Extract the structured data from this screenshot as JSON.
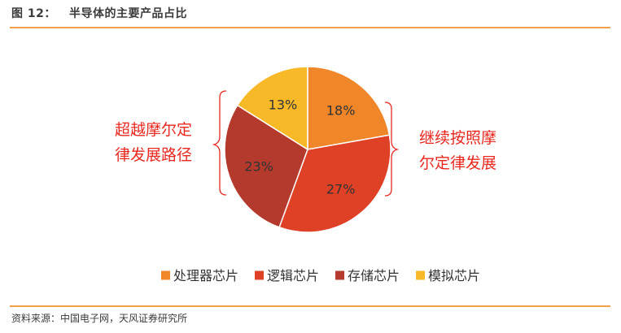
{
  "figure": {
    "title": "图 12：   半导体的主要产品占比",
    "source": "资料来源：中国电子网，天风证券研究所"
  },
  "annotations": {
    "left": [
      "超越摩尔定",
      "律发展路径"
    ],
    "right": [
      "继续按照摩",
      "尔定律发展"
    ]
  },
  "chart_data": {
    "type": "pie",
    "title": "",
    "legend_position": "bottom",
    "slices": [
      {
        "name": "处理器芯片",
        "value": 18,
        "label": "18%",
        "color": "#f0862a"
      },
      {
        "name": "逻辑芯片",
        "value": 27,
        "label": "27%",
        "color": "#df4127"
      },
      {
        "name": "存储芯片",
        "value": 23,
        "label": "23%",
        "color": "#b33a2c"
      },
      {
        "name": "模拟芯片",
        "value": 13,
        "label": "13%",
        "color": "#f7b928"
      }
    ]
  },
  "colors": {
    "bracket": "#e8281f",
    "rule": "#f0a04b"
  }
}
